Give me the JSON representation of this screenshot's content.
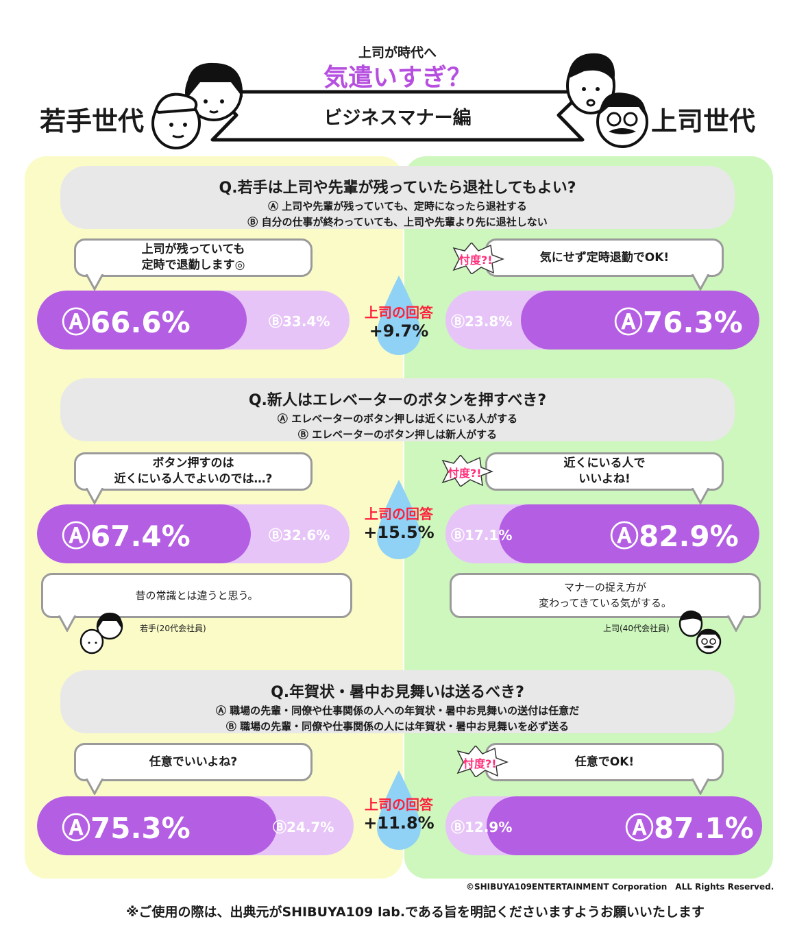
{
  "header": {
    "subtitle": "上司が時代へ",
    "title": "気遣いすぎ？",
    "young_label": "若手世代",
    "boss_label": "上司世代",
    "banner": "ビジネスマナー編"
  },
  "colors": {
    "young_panel": "#fbfbc8",
    "boss_panel": "#cdf7bd",
    "bar_main": "#b45ee3",
    "bar_light": "#e6c4f7",
    "drop": "#8fd2f5",
    "accent_red": "#ff1f3a",
    "title_purple": "#b64fe0"
  },
  "questions": [
    {
      "title": "Q.若手は上司や先輩が残っていたら退社してもよい?",
      "option_a": "Ⓐ 上司や先輩が残っていても、定時になったら退社する",
      "option_b": "Ⓑ 自分の仕事が終わっていても、上司や先輩より先に退社しない",
      "young_comment": "上司が残っていても\n定時で退勤します◎",
      "boss_comment": "気にせず定時退勤でOK!",
      "sontaku": "忖度?!",
      "young_a": "Ⓐ66.6%",
      "young_a_value": 66.6,
      "young_b": "Ⓑ33.4%",
      "boss_a": "Ⓐ76.3%",
      "boss_a_value": 76.3,
      "boss_b": "Ⓑ23.8%",
      "diff_label": "上司の回答",
      "diff": "+9.7%"
    },
    {
      "title": "Q.新人はエレベーターのボタンを押すべき?",
      "option_a": "Ⓐ エレベーターのボタン押しは近くにいる人がする",
      "option_b": "Ⓑ エレベーターのボタン押しは新人がする",
      "young_comment": "ボタン押すのは\n近くにいる人でよいのでは…?",
      "boss_comment": "近くにいる人で\nいいよね!",
      "sontaku": "忖度?!",
      "young_a": "Ⓐ67.4%",
      "young_a_value": 67.4,
      "young_b": "Ⓑ32.6%",
      "boss_a": "Ⓐ82.9%",
      "boss_a_value": 82.9,
      "boss_b": "Ⓑ17.1%",
      "diff_label": "上司の回答",
      "diff": "+15.5%",
      "young_quote": "昔の常識とは違うと思う。",
      "young_quote_by": "若手(20代会社員)",
      "boss_quote": "マナーの捉え方が\n変わってきている気がする。",
      "boss_quote_by": "上司(40代会社員)"
    },
    {
      "title": "Q.年賀状・暑中お見舞いは送るべき?",
      "option_a": "Ⓐ 職場の先輩・同僚や仕事関係の人への年賀状・暑中お見舞いの送付は任意だ",
      "option_b": "Ⓑ 職場の先輩・同僚や仕事関係の人には年賀状・暑中お見舞いを必ず送る",
      "young_comment": "任意でいいよね?",
      "boss_comment": "任意でOK!",
      "sontaku": "忖度?!",
      "young_a": "Ⓐ75.3%",
      "young_a_value": 75.3,
      "young_b": "Ⓑ24.7%",
      "boss_a": "Ⓐ87.1%",
      "boss_a_value": 87.1,
      "boss_b": "Ⓑ12.9%",
      "diff_label": "上司の回答",
      "diff": "+11.8%"
    }
  ],
  "copyright": "©SHIBUYA109ENTERTAINMENT Corporation　ALL Rights Reserved.",
  "footnote": "※ご使用の際は、出典元がSHIBUYA109 lab.である旨を明記くださいますようお願いいたします"
}
